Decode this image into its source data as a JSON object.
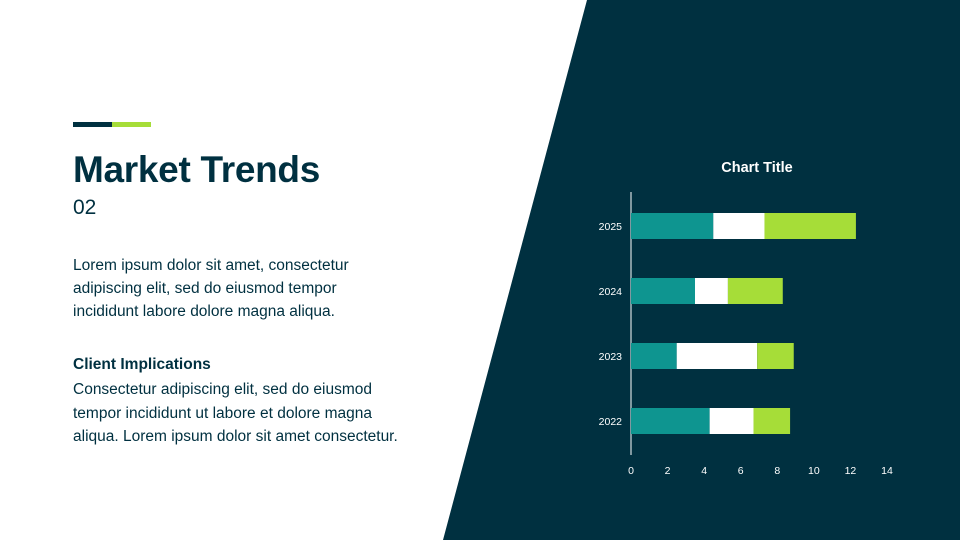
{
  "colors": {
    "dark_navy": "#003040",
    "teal": "#0e9590",
    "lime": "#a6dd38",
    "white": "#ffffff"
  },
  "slide": {
    "title": "Market Trends",
    "subtitle": "02",
    "body": "Lorem ipsum dolor sit amet, consectetur adipiscing elit, sed do eiusmod tempor incididunt labore dolore magna aliqua.",
    "implications_heading": "Client Implications",
    "implications_body": "Consectetur adipiscing elit, sed do eiusmod tempor incididunt ut labore et dolore magna aliqua. Lorem ipsum dolor sit amet consectetur."
  },
  "chart_data": {
    "type": "bar",
    "orientation": "horizontal",
    "stacked": true,
    "title": "Chart Title",
    "categories": [
      "2022",
      "2023",
      "2024",
      "2025"
    ],
    "series": [
      {
        "color": "#0e9590",
        "values": [
          4.3,
          2.5,
          3.5,
          4.5
        ]
      },
      {
        "color": "#ffffff",
        "values": [
          2.4,
          4.4,
          1.8,
          2.8
        ]
      },
      {
        "color": "#a6dd38",
        "values": [
          2.0,
          2.0,
          3.0,
          5.0
        ]
      }
    ],
    "xlim": [
      0,
      14
    ],
    "x_ticks": [
      "0",
      "2",
      "4",
      "6",
      "8",
      "10",
      "12",
      "14"
    ],
    "grid": false,
    "legend": "none"
  }
}
